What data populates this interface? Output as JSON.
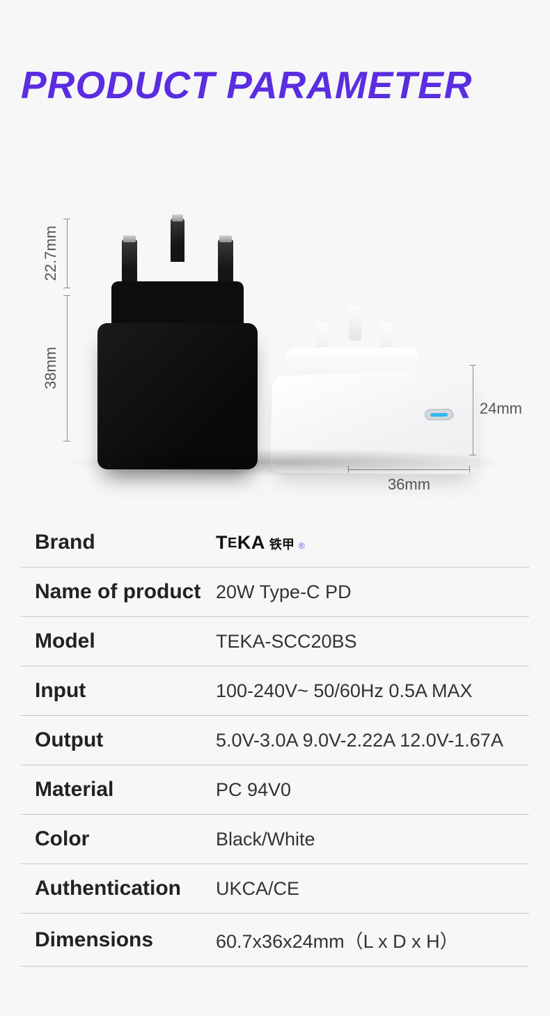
{
  "title": "PRODUCT PARAMETER",
  "title_color": "#5a2de0",
  "background": "#f7f7f8",
  "dimensions": {
    "top_prong_height": "22.7mm",
    "body_height": "38mm",
    "depth": "36mm",
    "port_height": "24mm"
  },
  "brand": {
    "name_latin": "TEKA",
    "name_cn": "铁甲",
    "reg": "®"
  },
  "specs": [
    {
      "label": "Brand",
      "value_is_brand": true
    },
    {
      "label": "Name of product",
      "value": "20W Type-C PD"
    },
    {
      "label": "Model",
      "value": "TEKA-SCC20BS"
    },
    {
      "label": "Input",
      "value": "100-240V~ 50/60Hz 0.5A MAX"
    },
    {
      "label": "Output",
      "value": "5.0V-3.0A  9.0V-2.22A  12.0V-1.67A"
    },
    {
      "label": "Material",
      "value": "PC 94V0"
    },
    {
      "label": "Color",
      "value": "Black/White"
    },
    {
      "label": "Authentication",
      "value": "UKCA/CE"
    },
    {
      "label": "Dimensions",
      "value": "60.7x36x24mm（L x D x H）"
    }
  ],
  "divider_color": "#c8c8c8",
  "label_fontsize": 30,
  "value_fontsize": 27
}
